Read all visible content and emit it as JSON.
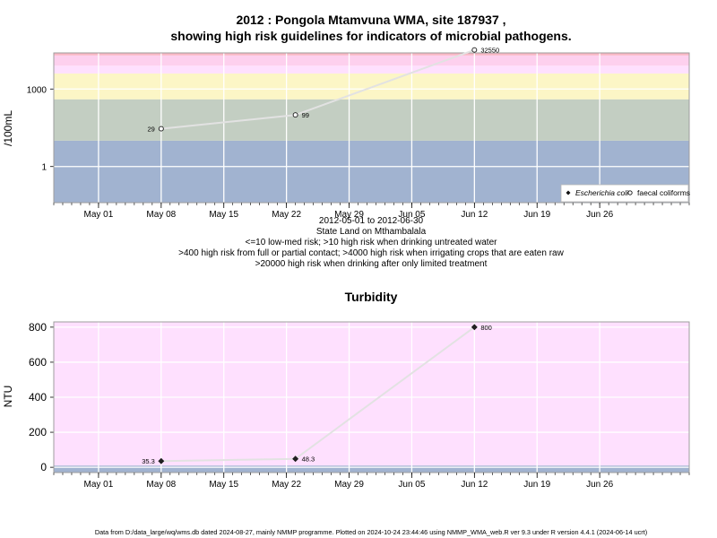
{
  "colors": {
    "band_low": "#a1b3d0",
    "band_lowmed": "#c3cec2",
    "band_yellow": "#fcf6c6",
    "band_pink": "#fee0fe",
    "band_pink2": "#fdd0ee",
    "band_red": "#f9b6c4",
    "turb_bg": "#fee0fe",
    "turb_low": "#a1b3d0",
    "line": "#e2e2e2",
    "frame": "#9e9e9e",
    "grid": "#ffffff"
  },
  "chart_data": [
    {
      "type": "line",
      "title_line1": "2012 : Pongola Mtamvuna WMA, site 187937 ,",
      "title_line2": "showing high risk guidelines for indicators of microbial pathogens.",
      "ylabel": "/100mL",
      "yscale": "log10",
      "ylim": [
        0.04,
        25000
      ],
      "yticks": [
        {
          "value": 1,
          "label": "1"
        },
        {
          "value": 1000,
          "label": "1000"
        }
      ],
      "xlim": [
        "2012-04-26",
        "2012-07-06"
      ],
      "xticks": [
        {
          "date": "2012-05-01",
          "label": "May 01"
        },
        {
          "date": "2012-05-08",
          "label": "May 08"
        },
        {
          "date": "2012-05-15",
          "label": "May 15"
        },
        {
          "date": "2012-05-22",
          "label": "May 22"
        },
        {
          "date": "2012-05-29",
          "label": "May 29"
        },
        {
          "date": "2012-06-05",
          "label": "Jun 05"
        },
        {
          "date": "2012-06-12",
          "label": "Jun 12"
        },
        {
          "date": "2012-06-19",
          "label": "Jun 19"
        },
        {
          "date": "2012-06-26",
          "label": "Jun 26"
        }
      ],
      "bands": [
        {
          "from": 0.04,
          "to": 10,
          "color": "band_low"
        },
        {
          "from": 10,
          "to": 400,
          "color": "band_lowmed"
        },
        {
          "from": 400,
          "to": 4000,
          "color": "band_yellow"
        },
        {
          "from": 4000,
          "to": 8000,
          "color": "band_pink"
        },
        {
          "from": 8000,
          "to": 20000,
          "color": "band_pink2"
        },
        {
          "from": 20000,
          "to": 25000,
          "color": "band_red"
        }
      ],
      "series": [
        {
          "name": "faecal coliforms",
          "marker": "open-circle",
          "points": [
            {
              "x": "2012-05-08",
              "y": 29,
              "label": "29"
            },
            {
              "x": "2012-05-23",
              "y": 99,
              "label": "99"
            },
            {
              "x": "2012-06-12",
              "y": 32550,
              "label": "32550"
            }
          ]
        }
      ],
      "legend": {
        "position": "bottom-right",
        "items": [
          {
            "label": "Escherichia coli",
            "marker": "filled-diamond"
          },
          {
            "label": "faecal coliforms",
            "marker": "open-circle"
          }
        ]
      },
      "caption": [
        "2012-05-01 to 2012-06-30",
        "State Land on Mthambalala",
        "<=10 low-med risk; >10 high risk when drinking untreated water",
        ">400 high risk from full or partial contact; >4000 high risk when irrigating crops that are eaten raw",
        ">20000 high risk when drinking after only limited treatment"
      ]
    },
    {
      "type": "line",
      "title": "Turbidity",
      "ylabel": "NTU",
      "ylim": [
        -30,
        830
      ],
      "yticks": [
        0,
        200,
        400,
        600,
        800
      ],
      "xlim": [
        "2012-04-26",
        "2012-07-06"
      ],
      "xticks": [
        {
          "date": "2012-05-01",
          "label": "May 01"
        },
        {
          "date": "2012-05-08",
          "label": "May 08"
        },
        {
          "date": "2012-05-15",
          "label": "May 15"
        },
        {
          "date": "2012-05-22",
          "label": "May 22"
        },
        {
          "date": "2012-05-29",
          "label": "May 29"
        },
        {
          "date": "2012-06-05",
          "label": "Jun 05"
        },
        {
          "date": "2012-06-12",
          "label": "Jun 12"
        },
        {
          "date": "2012-06-19",
          "label": "Jun 19"
        },
        {
          "date": "2012-06-26",
          "label": "Jun 26"
        }
      ],
      "bands": [
        {
          "from": -30,
          "to": 10,
          "color": "turb_low"
        },
        {
          "from": 10,
          "to": 830,
          "color": "turb_bg"
        }
      ],
      "series": [
        {
          "name": "",
          "marker": "filled-diamond",
          "points": [
            {
              "x": "2012-05-08",
              "y": 35.3,
              "label": "35.3"
            },
            {
              "x": "2012-05-23",
              "y": 48.3,
              "label": "48.3"
            },
            {
              "x": "2012-06-12",
              "y": 800,
              "label": "800"
            }
          ]
        }
      ]
    }
  ],
  "footer": "Data from D:/data_large/wq/wms.db dated 2024-08-27, mainly NMMP programme. Plotted on 2024-10-24 23:44:46 using NMMP_WMA_web.R ver 9.3 under R version 4.4.1 (2024-06-14 ucrt)"
}
